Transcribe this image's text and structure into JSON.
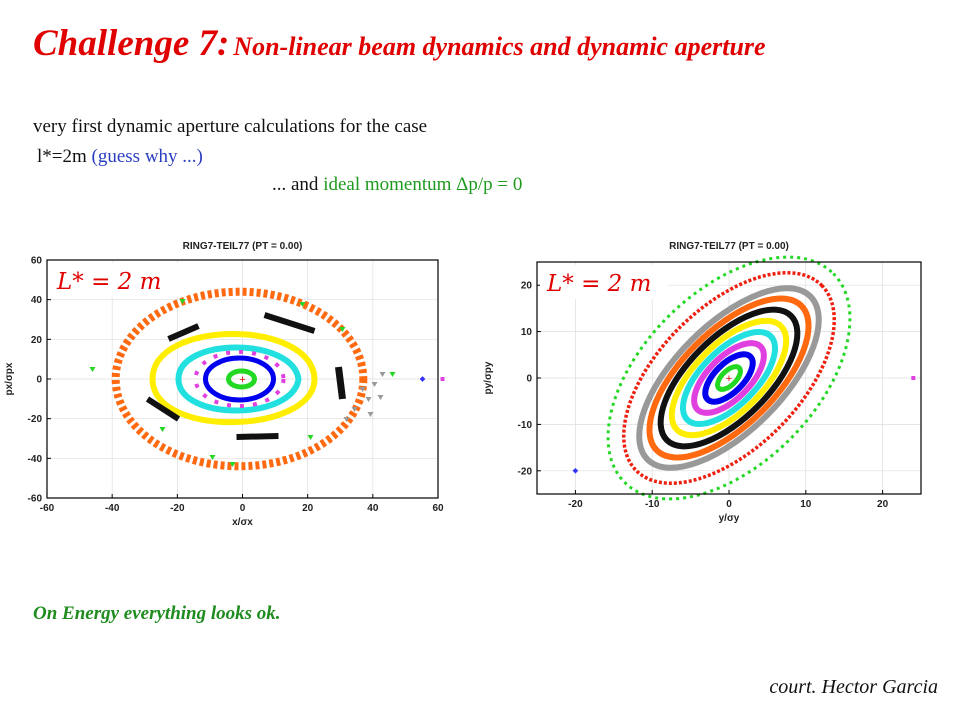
{
  "title": {
    "main": "Challenge 7:",
    "sub": "Non-linear beam dynamics and dynamic aperture"
  },
  "text": {
    "line1": "very first dynamic aperture calculations for the case",
    "line2_prefix": "l*=2m",
    "line2_note": "(guess why ...)",
    "line3_prefix": "... and",
    "line3_green": "ideal momentum Δp/p = 0"
  },
  "footer": "On Energy everything looks ok.",
  "credit": "court. Hector Garcia",
  "colors": {
    "title": "#e00000",
    "note_blue": "#2a3fc0",
    "note_green": "#1e9a1e"
  },
  "chart_data": [
    {
      "type": "scatter",
      "title": "RING7-TEIL77 (PT = 0.00)",
      "annotation": "L* = 2 m",
      "xlabel": "x/σx",
      "ylabel": "px/σpx",
      "xlim": [
        -60,
        60
      ],
      "ylim": [
        -60,
        60
      ],
      "xticks": [
        -60,
        -40,
        -20,
        0,
        20,
        40,
        60
      ],
      "yticks": [
        -60,
        -40,
        -20,
        0,
        20,
        40,
        60
      ],
      "series": [
        {
          "color": "#22d822",
          "values": [
            [
              -5,
              0
            ],
            [
              4,
              0
            ]
          ]
        },
        {
          "color": "#0000ee",
          "values": [
            [
              -16,
              0
            ],
            [
              14,
              0
            ]
          ]
        },
        {
          "color": "#e040e0",
          "values": [
            [
              -23,
              0
            ],
            [
              20,
              0
            ]
          ]
        },
        {
          "color": "#22e0e0",
          "values": [
            [
              -29,
              0
            ],
            [
              26,
              0
            ]
          ]
        },
        {
          "color": "#ffee00",
          "values": [
            [
              -38,
              0
            ],
            [
              31,
              0
            ]
          ]
        },
        {
          "color": "#ff6a10",
          "values": [
            [
              -43,
              0
            ],
            [
              36,
              0
            ]
          ]
        },
        {
          "color": "#111111",
          "values": [
            [
              -29,
              10
            ],
            [
              15,
              24
            ],
            [
              0,
              -29
            ],
            [
              32,
              -2
            ]
          ]
        },
        {
          "color": "#999999",
          "values": [
            [
              34,
              -5
            ],
            [
              38,
              -12
            ]
          ]
        },
        {
          "color": "#3333ff",
          "values": [
            [
              55,
              0
            ]
          ]
        }
      ]
    },
    {
      "type": "scatter",
      "title": "RING7-TEIL77 (PT = 0.00)",
      "annotation": "L* = 2 m",
      "xlabel": "y/σy",
      "ylabel": "py/σpy",
      "xlim": [
        -25,
        25
      ],
      "ylim": [
        -25,
        25
      ],
      "xticks": [
        -20,
        -10,
        0,
        10,
        20
      ],
      "yticks": [
        -20,
        -10,
        0,
        10,
        20
      ],
      "series": [
        {
          "color": "#22d822",
          "values": [
            [
              -2,
              0
            ],
            [
              2,
              0
            ]
          ]
        },
        {
          "color": "#0000ee",
          "values": [
            [
              -4,
              0
            ],
            [
              4,
              0
            ]
          ]
        },
        {
          "color": "#e040e0",
          "values": [
            [
              -6,
              0
            ],
            [
              6,
              0
            ]
          ]
        },
        {
          "color": "#22e0e0",
          "values": [
            [
              -8,
              0
            ],
            [
              8,
              0
            ]
          ]
        },
        {
          "color": "#ffee00",
          "values": [
            [
              -10,
              0
            ],
            [
              10,
              0
            ]
          ]
        },
        {
          "color": "#111111",
          "values": [
            [
              -12,
              0
            ],
            [
              12,
              0
            ]
          ]
        },
        {
          "color": "#ff6a10",
          "values": [
            [
              -14,
              0
            ],
            [
              14,
              0
            ]
          ]
        },
        {
          "color": "#999999",
          "values": [
            [
              -16,
              0
            ],
            [
              16,
              0
            ]
          ]
        },
        {
          "color": "#ee2010",
          "values": [
            [
              -19,
              0
            ],
            [
              19,
              0
            ]
          ]
        },
        {
          "color": "#22d822",
          "values": [
            [
              -22,
              0
            ],
            [
              22,
              0
            ]
          ]
        },
        {
          "color": "#3333ff",
          "values": [
            [
              -20,
              -20
            ]
          ]
        }
      ]
    }
  ]
}
